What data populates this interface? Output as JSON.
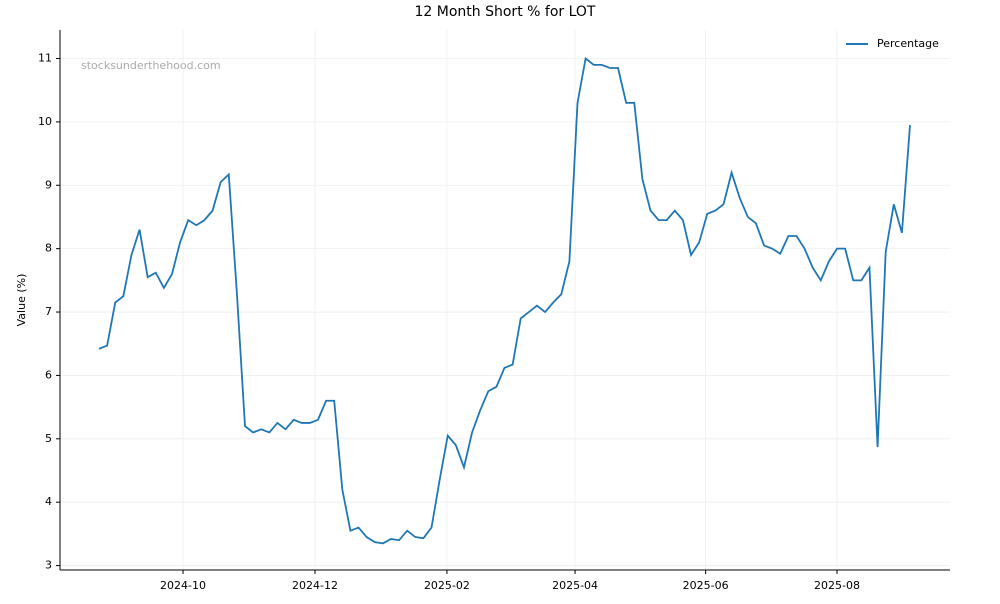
{
  "chart_data": {
    "type": "line",
    "title": "12 Month Short % for LOT",
    "ylabel": "Value (%)",
    "watermark": "stocksunderthehood.com",
    "legend": "upper right",
    "grid": true,
    "series": [
      {
        "name": "Percentage",
        "color": "#1f77b4",
        "values": [
          6.42,
          6.47,
          7.15,
          7.25,
          7.9,
          8.3,
          7.55,
          7.62,
          7.38,
          7.6,
          8.1,
          8.45,
          8.37,
          8.45,
          8.6,
          9.05,
          9.17,
          7.3,
          5.2,
          5.1,
          5.15,
          5.1,
          5.25,
          5.15,
          5.3,
          5.25,
          5.25,
          5.3,
          5.6,
          5.6,
          4.2,
          3.55,
          3.6,
          3.45,
          3.37,
          3.35,
          3.42,
          3.4,
          3.55,
          3.45,
          3.43,
          3.6,
          4.35,
          5.05,
          4.9,
          4.55,
          5.1,
          5.45,
          5.75,
          5.82,
          6.12,
          6.17,
          6.9,
          7.0,
          7.1,
          7.0,
          7.15,
          7.28,
          7.8,
          10.3,
          11.0,
          10.9,
          10.9,
          10.85,
          10.85,
          10.3,
          10.3,
          9.1,
          8.6,
          8.45,
          8.45,
          8.6,
          8.45,
          7.9,
          8.1,
          8.55,
          8.6,
          8.7,
          9.2,
          8.8,
          8.5,
          8.4,
          8.05,
          8.0,
          7.92,
          8.2,
          8.2,
          8.0,
          7.7,
          7.5,
          7.8,
          8.0,
          8.0,
          7.5,
          7.5,
          7.7,
          4.87,
          7.95,
          8.7,
          8.25,
          9.95
        ]
      }
    ],
    "xlim": [
      -4.81,
      104.93
    ],
    "xticks": [
      {
        "value": 10.36,
        "label": "2024-10"
      },
      {
        "value": 26.63,
        "label": "2024-12"
      },
      {
        "value": 42.9,
        "label": "2025-02"
      },
      {
        "value": 58.7,
        "label": "2025-04"
      },
      {
        "value": 74.8,
        "label": "2025-06"
      },
      {
        "value": 91.0,
        "label": "2025-08"
      }
    ],
    "ylim": [
      2.93,
      11.45
    ],
    "yticks": [
      3,
      4,
      5,
      6,
      7,
      8,
      9,
      10,
      11
    ]
  }
}
